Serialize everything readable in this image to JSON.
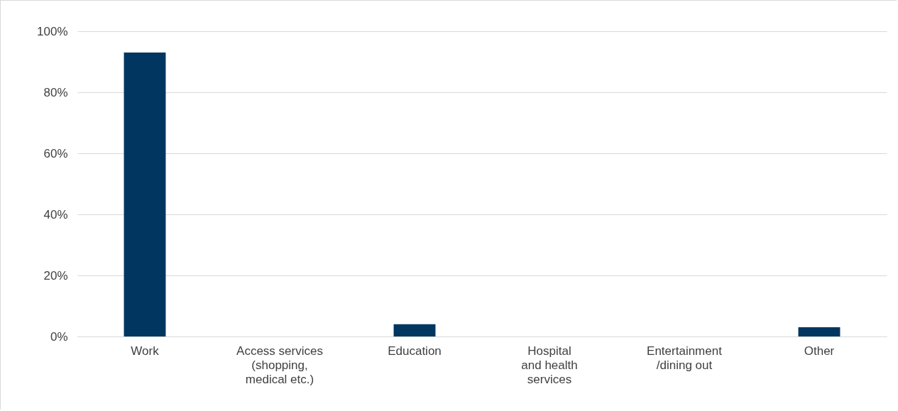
{
  "chart_data": {
    "type": "bar",
    "categories": [
      "Work",
      "Access services\n(shopping,\nmedical etc.)",
      "Education",
      "Hospital\nand health\nservices",
      "Entertainment\n/dining out",
      "Other"
    ],
    "values": [
      93,
      0,
      4,
      0,
      0,
      3
    ],
    "color": "#003660",
    "ylim": [
      0,
      100
    ],
    "yticks": [
      {
        "value": 0,
        "label": "0%"
      },
      {
        "value": 20,
        "label": "20%"
      },
      {
        "value": 40,
        "label": "40%"
      },
      {
        "value": 60,
        "label": "60%"
      },
      {
        "value": 80,
        "label": "80%"
      },
      {
        "value": 100,
        "label": "100%"
      }
    ],
    "grid": "y"
  }
}
